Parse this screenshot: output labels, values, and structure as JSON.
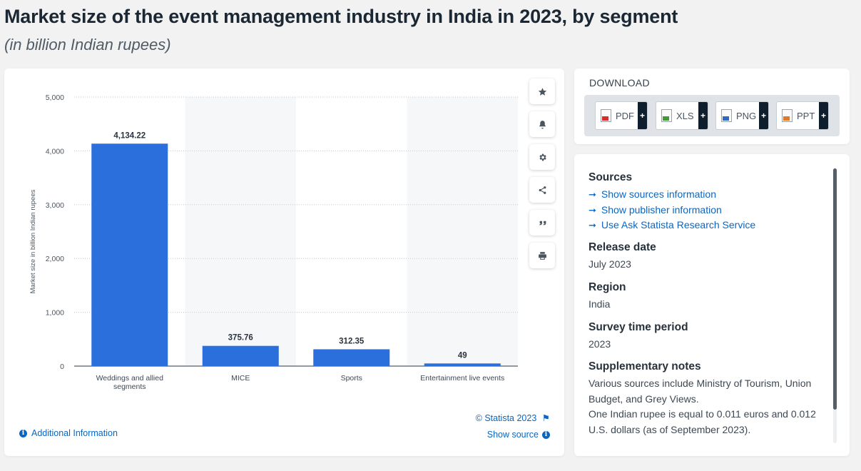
{
  "title": "Market size of the event management industry in India in 2023, by segment",
  "subtitle": "(in billion Indian rupees)",
  "chart_data": {
    "type": "bar",
    "categories": [
      "Weddings and allied segments",
      "MICE",
      "Sports",
      "Entertainment live events"
    ],
    "category_lines": [
      [
        "Weddings and allied",
        "segments"
      ],
      [
        "MICE"
      ],
      [
        "Sports"
      ],
      [
        "Entertainment live events"
      ]
    ],
    "values": [
      4134.22,
      375.76,
      312.35,
      49
    ],
    "value_labels": [
      "4,134.22",
      "375.76",
      "312.35",
      "49"
    ],
    "ylabel": "Market size in billion Indian rupees",
    "ylim": [
      0,
      5000
    ],
    "yticks": [
      0,
      1000,
      2000,
      3000,
      4000,
      5000
    ],
    "ytick_labels": [
      "0",
      "1,000",
      "2,000",
      "3,000",
      "4,000",
      "5,000"
    ],
    "grid": "dotted horizontal",
    "bar_color": "#2a6fdb"
  },
  "colors": {
    "accent": "#0a66c2",
    "bar": "#2a6fdb",
    "band": "#f6f7f8"
  },
  "toolbar": {
    "icons": [
      "star-icon",
      "bell-icon",
      "gear-icon",
      "share-icon",
      "quote-icon",
      "print-icon"
    ]
  },
  "footer": {
    "credit": "© Statista 2023",
    "show_source": "Show source",
    "additional_info": "Additional Information"
  },
  "download": {
    "heading": "DOWNLOAD",
    "buttons": [
      {
        "label": "PDF",
        "icon": "pdf-file-icon",
        "color": "#d32f2f"
      },
      {
        "label": "XLS",
        "icon": "xls-file-icon",
        "color": "#3f9b36"
      },
      {
        "label": "PNG",
        "icon": "png-file-icon",
        "color": "#2c6bbf"
      },
      {
        "label": "PPT",
        "icon": "ppt-file-icon",
        "color": "#e0782a"
      }
    ],
    "plus": "+"
  },
  "info": {
    "sources_heading": "Sources",
    "links": [
      "Show sources information",
      "Show publisher information",
      "Use Ask Statista Research Service"
    ],
    "release_heading": "Release date",
    "release_value": "July 2023",
    "region_heading": "Region",
    "region_value": "India",
    "period_heading": "Survey time period",
    "period_value": "2023",
    "notes_heading": "Supplementary notes",
    "notes_1": "Various sources include Ministry of Tourism, Union Budget, and Grey Views.",
    "notes_2": "One Indian rupee is equal to 0.011 euros and 0.012 U.S. dollars (as of September 2023)."
  }
}
